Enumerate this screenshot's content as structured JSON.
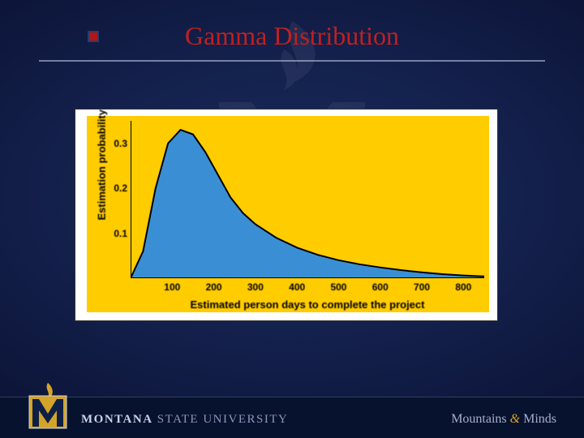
{
  "title": "Gamma Distribution",
  "chart": {
    "type": "area",
    "background_color": "#ffcc00",
    "fill_color": "#3a8fd4",
    "stroke_color": "#000000",
    "stroke_width": 2,
    "xlabel": "Estimated person days to complete the project",
    "ylabel": "Estimation probability",
    "label_fontsize": 13,
    "tick_fontsize": 12,
    "xlim": [
      0,
      850
    ],
    "ylim": [
      0,
      0.35
    ],
    "xticks": [
      100,
      200,
      300,
      400,
      500,
      600,
      700,
      800
    ],
    "xtick_labels": [
      "100",
      "200",
      "300",
      "400",
      "500",
      "600",
      "700",
      "800"
    ],
    "yticks": [
      0.1,
      0.2,
      0.3
    ],
    "ytick_labels": [
      "0.1",
      "0.2",
      "0.3"
    ],
    "curve": [
      [
        0,
        0.0
      ],
      [
        30,
        0.06
      ],
      [
        60,
        0.2
      ],
      [
        90,
        0.3
      ],
      [
        120,
        0.33
      ],
      [
        150,
        0.32
      ],
      [
        180,
        0.28
      ],
      [
        210,
        0.23
      ],
      [
        240,
        0.18
      ],
      [
        270,
        0.145
      ],
      [
        300,
        0.12
      ],
      [
        350,
        0.09
      ],
      [
        400,
        0.068
      ],
      [
        450,
        0.052
      ],
      [
        500,
        0.04
      ],
      [
        550,
        0.031
      ],
      [
        600,
        0.024
      ],
      [
        650,
        0.018
      ],
      [
        700,
        0.013
      ],
      [
        750,
        0.009
      ],
      [
        800,
        0.006
      ],
      [
        850,
        0.004
      ]
    ]
  },
  "footer": {
    "university_prefix": "MONTANA",
    "university_suffix": "STATE UNIVERSITY",
    "motto_left": "Mountains",
    "motto_amp": "&",
    "motto_right": "Minds"
  },
  "colors": {
    "slide_bg_center": "#1a2a5e",
    "slide_bg_edge": "#070d28",
    "title_color": "#c02020",
    "footer_bg": "#07122e",
    "logo_gold": "#d4a32a",
    "logo_navy": "#0d1f45"
  }
}
